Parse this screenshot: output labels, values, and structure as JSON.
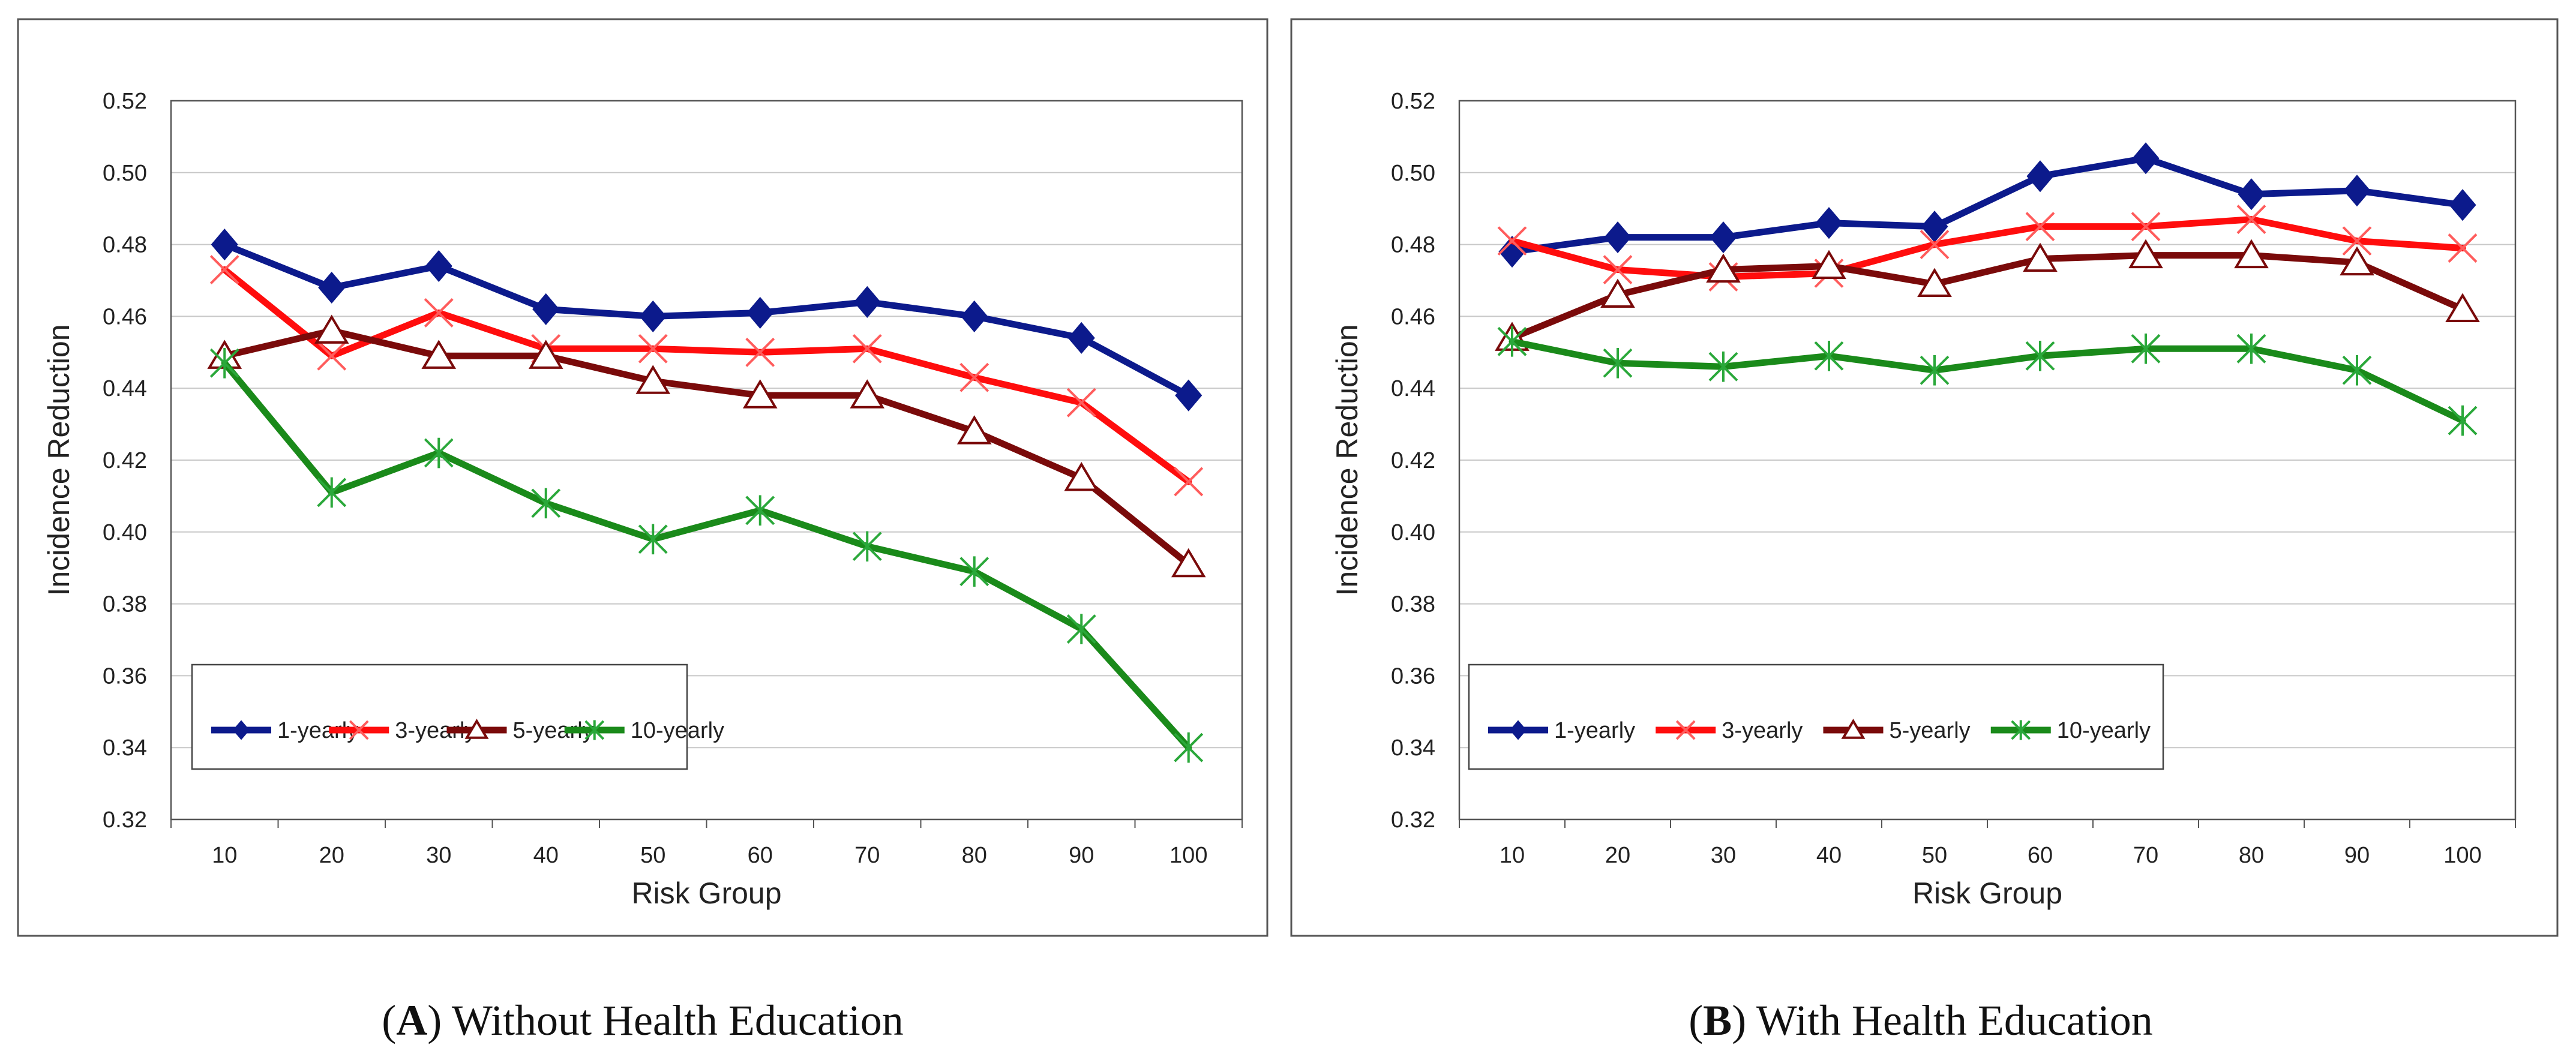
{
  "colors": {
    "series_1": "#0c1a8c",
    "series_3": "#ff0d0d",
    "series_5": "#7a0a0a",
    "series_10": "#1a8a1a",
    "marker_3": "#ff5c5c",
    "marker_10": "#2aa83a"
  },
  "chart_data": [
    {
      "type": "line",
      "panel_letter": "A",
      "caption": "Without Health Education",
      "title": "",
      "xlabel": "Risk Group",
      "ylabel": "Incidence Reduction",
      "ylim": [
        0.32,
        0.52
      ],
      "yticks": [
        "0.32",
        "0.34",
        "0.36",
        "0.38",
        "0.40",
        "0.42",
        "0.44",
        "0.46",
        "0.48",
        "0.50",
        "0.52"
      ],
      "categories": [
        "10",
        "20",
        "30",
        "40",
        "50",
        "60",
        "70",
        "80",
        "90",
        "100"
      ],
      "grid": true,
      "legend_position": "bottom-left",
      "series": [
        {
          "name": "1-yearly",
          "marker": "diamond",
          "values": [
            0.48,
            0.468,
            0.474,
            0.462,
            0.46,
            0.461,
            0.464,
            0.46,
            0.454,
            0.438
          ]
        },
        {
          "name": "3-yearly",
          "marker": "x",
          "values": [
            0.473,
            0.449,
            0.461,
            0.451,
            0.451,
            0.45,
            0.451,
            0.443,
            0.436,
            0.414
          ]
        },
        {
          "name": "5-yearly",
          "marker": "triangle",
          "values": [
            0.449,
            0.456,
            0.449,
            0.449,
            0.442,
            0.438,
            0.438,
            0.428,
            0.415,
            0.391
          ]
        },
        {
          "name": "10-yearly",
          "marker": "asterisk",
          "values": [
            0.447,
            0.411,
            0.422,
            0.408,
            0.398,
            0.406,
            0.396,
            0.389,
            0.373,
            0.34
          ]
        }
      ]
    },
    {
      "type": "line",
      "panel_letter": "B",
      "caption": "With Health Education",
      "title": "",
      "xlabel": "Risk Group",
      "ylabel": "Incidence Reduction",
      "ylim": [
        0.32,
        0.52
      ],
      "yticks": [
        "0.32",
        "0.34",
        "0.36",
        "0.38",
        "0.40",
        "0.42",
        "0.44",
        "0.46",
        "0.48",
        "0.50",
        "0.52"
      ],
      "categories": [
        "10",
        "20",
        "30",
        "40",
        "50",
        "60",
        "70",
        "80",
        "90",
        "100"
      ],
      "grid": true,
      "legend_position": "bottom-left",
      "series": [
        {
          "name": "1-yearly",
          "marker": "diamond",
          "values": [
            0.478,
            0.482,
            0.482,
            0.486,
            0.485,
            0.499,
            0.504,
            0.494,
            0.495,
            0.491
          ]
        },
        {
          "name": "3-yearly",
          "marker": "x",
          "values": [
            0.481,
            0.473,
            0.471,
            0.472,
            0.48,
            0.485,
            0.485,
            0.487,
            0.481,
            0.479
          ]
        },
        {
          "name": "5-yearly",
          "marker": "triangle",
          "values": [
            0.454,
            0.466,
            0.473,
            0.474,
            0.469,
            0.476,
            0.477,
            0.477,
            0.475,
            0.462
          ]
        },
        {
          "name": "10-yearly",
          "marker": "asterisk",
          "values": [
            0.453,
            0.447,
            0.446,
            0.449,
            0.445,
            0.449,
            0.451,
            0.451,
            0.445,
            0.431
          ]
        }
      ]
    }
  ]
}
